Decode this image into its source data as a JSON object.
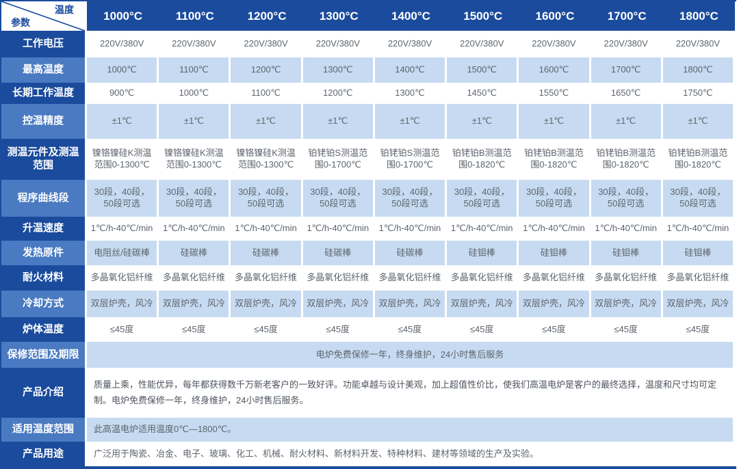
{
  "table": {
    "corner": {
      "top": "温度",
      "bottom": "参数"
    },
    "columns": [
      "1000°C",
      "1100°C",
      "1200°C",
      "1300°C",
      "1400°C",
      "1500°C",
      "1600°C",
      "1700°C",
      "1800°C"
    ],
    "rows": [
      {
        "label": "工作电压",
        "values": [
          "220V/380V",
          "220V/380V",
          "220V/380V",
          "220V/380V",
          "220V/380V",
          "220V/380V",
          "220V/380V",
          "220V/380V",
          "220V/380V"
        ]
      },
      {
        "label": "最高温度",
        "values": [
          "1000℃",
          "1100℃",
          "1200℃",
          "1300℃",
          "1400℃",
          "1500℃",
          "1600℃",
          "1700℃",
          "1800℃"
        ]
      },
      {
        "label": "长期工作温度",
        "values": [
          "900℃",
          "1000℃",
          "1100℃",
          "1200℃",
          "1300℃",
          "1450℃",
          "1550℃",
          "1650℃",
          "1750℃"
        ]
      },
      {
        "label": "控温精度",
        "values": [
          "±1℃",
          "±1℃",
          "±1℃",
          "±1℃",
          "±1℃",
          "±1℃",
          "±1℃",
          "±1℃",
          "±1℃"
        ]
      },
      {
        "label": "测温元件及测温范围",
        "values": [
          "镍铬镍硅K测温范围0-1300℃",
          "镍铬镍硅K测温范围0-1300℃",
          "镍铬镍硅K测温范围0-1300℃",
          "铂铑铂S测温范围0-1700℃",
          "铂铑铂S测温范围0-1700℃",
          "铂铑铂B测温范围0-1820℃",
          "铂铑铂B测温范围0-1820℃",
          "铂铑铂B测温范围0-1820℃",
          "铂铑铂B测温范围0-1820℃"
        ]
      },
      {
        "label": "程序曲线段",
        "values": [
          "30段，40段，\n50段可选",
          "30段，40段，\n50段可选",
          "30段，40段，\n50段可选",
          "30段，40段，\n50段可选",
          "30段，40段，\n50段可选",
          "30段，40段，\n50段可选",
          "30段，40段，\n50段可选",
          "30段，40段，\n50段可选",
          "30段，40段，\n50段可选"
        ]
      },
      {
        "label": "升温速度",
        "values": [
          "1℃/h-40℃/min",
          "1℃/h-40℃/min",
          "1℃/h-40℃/min",
          "1℃/h-40℃/min",
          "1℃/h-40℃/min",
          "1℃/h-40℃/min",
          "1℃/h-40℃/min",
          "1℃/h-40℃/min",
          "1℃/h-40℃/min"
        ]
      },
      {
        "label": "发热原件",
        "values": [
          "电阻丝/硅碳棒",
          "硅碳棒",
          "硅碳棒",
          "硅碳棒",
          "硅碳棒",
          "硅钼棒",
          "硅钼棒",
          "硅钼棒",
          "硅钼棒"
        ]
      },
      {
        "label": "耐火材料",
        "values": [
          "多晶氧化铝纤维",
          "多晶氧化铝纤维",
          "多晶氧化铝纤维",
          "多晶氧化铝纤维",
          "多晶氧化铝纤维",
          "多晶氧化铝纤维",
          "多晶氧化铝纤维",
          "多晶氧化铝纤维",
          "多晶氧化铝纤维"
        ]
      },
      {
        "label": "冷却方式",
        "values": [
          "双层炉壳，风冷",
          "双层炉壳，风冷",
          "双层炉壳，风冷",
          "双层炉壳，风冷",
          "双层炉壳，风冷",
          "双层炉壳，风冷",
          "双层炉壳，风冷",
          "双层炉壳，风冷",
          "双层炉壳，风冷"
        ]
      },
      {
        "label": "炉体温度",
        "values": [
          "≤45度",
          "≤45度",
          "≤45度",
          "≤45度",
          "≤45度",
          "≤45度",
          "≤45度",
          "≤45度",
          "≤45度"
        ]
      },
      {
        "label": "保修范围及期限",
        "span": true,
        "align": "center",
        "value": "电炉免费保修一年，终身维护，24小时售后服务"
      },
      {
        "label": "产品介绍",
        "span": true,
        "align": "left",
        "value": "质量上乘，性能优异，每年都获得数千万新老客户的一致好评。功能卓越与设计美观，加上超值性价比，使我们高温电炉是客户的最终选择，温度和尺寸均可定制。电炉免费保修一年，终身维护，24小时售后服务。"
      },
      {
        "label": "适用温度范围",
        "span": true,
        "align": "left",
        "value": "此高温电炉适用温度0℃—1800℃。"
      },
      {
        "label": "产品用途",
        "span": true,
        "align": "left",
        "value": "广泛用于陶瓷、冶金、电子、玻璃、化工、机械、耐火材料、新材料开发、特种材料、建材等领域的生产及实验。"
      }
    ],
    "colors": {
      "header_navy": "#1a4b9c",
      "label_medium_blue": "#4a7ac1",
      "row_light_blue": "#c6dbf1",
      "row_white": "#ffffff",
      "cell_text_gray": "#5d646d"
    }
  }
}
